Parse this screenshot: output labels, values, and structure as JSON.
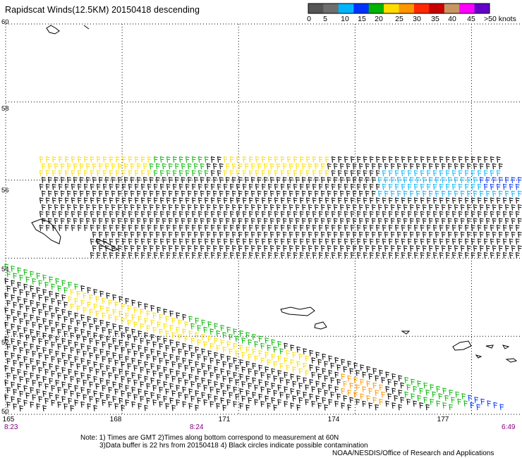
{
  "header": {
    "title": "Rapidscat Winds(12.5KM) 20150418 descending",
    "units_label": ">50 knots"
  },
  "legend": {
    "labels": [
      "0",
      "5",
      "10",
      "15",
      "20",
      "25",
      "30",
      "35",
      "40",
      "45"
    ],
    "colors": [
      "#555555",
      "#6e6e6e",
      "#00b4ff",
      "#0032ff",
      "#00b400",
      "#ffdc00",
      "#ff9600",
      "#ff2800",
      "#c80000",
      "#c89664",
      "#ff00ff",
      "#6400c8"
    ]
  },
  "chart_data": {
    "type": "wind-barb-map",
    "title": "Rapidscat Winds(12.5KM) 20150418 descending",
    "lat_range": [
      50,
      60
    ],
    "lon_range": [
      165,
      178.3
    ],
    "lat_ticks": [
      "60",
      "58",
      "56",
      "54",
      "52",
      "50"
    ],
    "lon_ticks": [
      "165",
      "168",
      "171",
      "174",
      "177"
    ],
    "time_labels": [
      "8:23",
      "8:24",
      "6:49"
    ],
    "grid": "dotted",
    "speed_colors": {
      "5-10": "#00b4ff",
      "10-15": "#0032ff",
      "15-20": "#00b400",
      "20-25": "#ffdc00",
      "25-30": "#ff9600",
      "under-5": "#000000"
    },
    "swaths": [
      {
        "name": "upper swath",
        "lat_top": 56.5,
        "lat_bottom": 53.8,
        "lon_start": 165.9,
        "lon_end": 178.3,
        "dominant_speed_kt": "under 5",
        "band_speeds_kt": [
          "20-25 near 56N west of 170E",
          "15-20 near 56N 169E",
          "5-10 along 55.5N 175-178E"
        ]
      },
      {
        "name": "lower swath",
        "lat_top": 54.0,
        "lat_bottom": 50.0,
        "lon_start": 165.0,
        "lon_end": 177.9,
        "dominant_speed_kt": "under 5",
        "band_speeds_kt": [
          "15-20 near 53.6N 165E",
          "20-25 diagonal band 53N 167E to 51N 175E",
          "25-30 near 51N 175E"
        ]
      }
    ]
  },
  "notes": {
    "line1": "Note: 1) Times are GMT 2)Times along bottom correspond to measurement at 60N",
    "line2": "3)Data buffer is 22 hrs from 20150418 4) Black circles indicate possible contamination",
    "line3": "NOAA/NESDIS/Office of Research and Applications"
  }
}
